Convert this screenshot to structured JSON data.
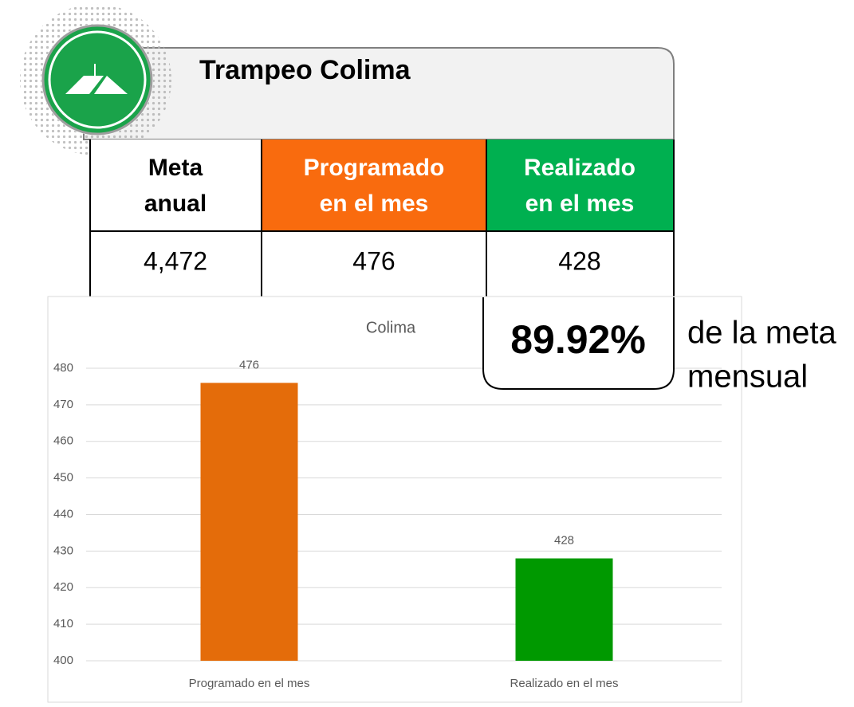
{
  "header": {
    "title": "Trampeo Colima"
  },
  "table": {
    "headers": [
      [
        "Meta",
        "anual"
      ],
      [
        "Programado",
        "en el mes"
      ],
      [
        "Realizado",
        "en el mes"
      ]
    ],
    "row": [
      "4,472",
      "476",
      "428"
    ]
  },
  "percentage": {
    "value": "89.92%",
    "caption": [
      "de la meta",
      "mensual"
    ]
  },
  "chart_data": {
    "type": "bar",
    "title": "Colima",
    "categories": [
      "Programado en el mes",
      "Realizado en el mes"
    ],
    "values": [
      476,
      428
    ],
    "colors": [
      "#e46c0a",
      "#009900"
    ],
    "ylim": [
      400,
      480
    ],
    "yticks": [
      400,
      410,
      420,
      430,
      440,
      450,
      460,
      470,
      480
    ],
    "grid": true
  }
}
